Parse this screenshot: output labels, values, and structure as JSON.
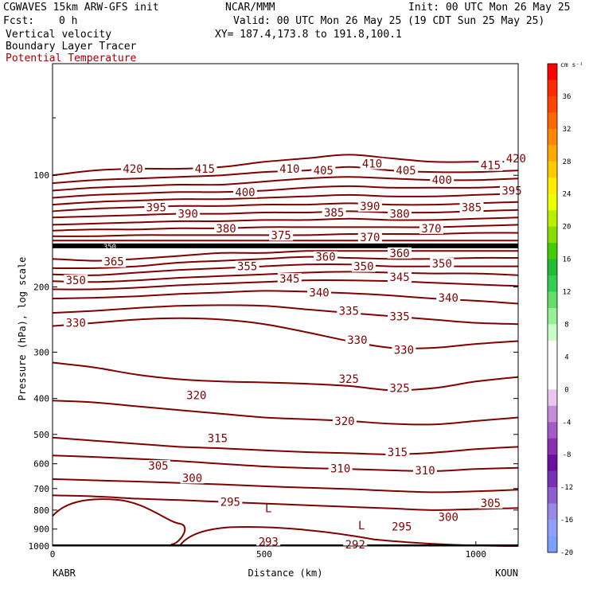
{
  "header": {
    "model": "CGWAVES 15km ARW-GFS init",
    "org": "NCAR/MMM",
    "init": "Init: 00 UTC Mon 26 May 25",
    "fcst_label": "Fcst:",
    "fcst_value": "0 h",
    "valid": "Valid: 00 UTC Mon 26 May 25 (19 CDT Sun 25 May 25)",
    "field1": "Vertical velocity",
    "xy": "XY= 187.4,173.8 to 191.8,100.1",
    "field2": "Boundary Layer Tracer",
    "field3": "Potential Temperature"
  },
  "colors": {
    "contour": "#800000",
    "field3_label": "#a00000",
    "frame": "#000000"
  },
  "chart_data": {
    "type": "line",
    "title": "",
    "xlabel": "Distance (km)",
    "ylabel": "Pressure (hPa), log scale",
    "x_ticks": [
      "0",
      "500",
      "1000"
    ],
    "x_tick_values": [
      0,
      500,
      1000
    ],
    "xlim": [
      0,
      1100
    ],
    "y_ticks": [
      "100",
      "200",
      "300",
      "400",
      "500",
      "600",
      "700",
      "800",
      "900",
      "1000"
    ],
    "y_tick_values": [
      100,
      200,
      300,
      400,
      500,
      600,
      700,
      800,
      900,
      1000
    ],
    "ylim": [
      1000,
      50
    ],
    "y_scale": "log",
    "x_left_station": "KABR",
    "x_right_station": "KOUN",
    "series_name": "Potential Temperature",
    "contour_interval": 5,
    "tropopause_label": "350",
    "tropopause_pressure": 155,
    "contour_x": [
      0,
      100,
      200,
      300,
      400,
      500,
      600,
      700,
      800,
      900,
      1000,
      1100
    ],
    "contours": [
      {
        "theta": 420,
        "p": [
          100,
          97,
          96,
          96,
          95,
          92,
          90,
          88,
          90,
          92,
          92,
          92
        ]
      },
      {
        "theta": 415,
        "p": [
          105,
          103,
          102,
          101,
          100,
          98,
          97,
          95,
          97,
          98,
          98,
          97
        ]
      },
      {
        "theta": 410,
        "p": [
          110,
          108,
          107,
          106,
          106,
          104,
          102,
          101,
          102,
          103,
          103,
          102
        ]
      },
      {
        "theta": 405,
        "p": [
          115,
          113,
          112,
          111,
          111,
          110,
          108,
          107,
          108,
          108,
          108,
          107
        ]
      },
      {
        "theta": 400,
        "p": [
          120,
          118,
          117,
          116,
          116,
          115,
          114,
          113,
          114,
          114,
          113,
          112
        ]
      },
      {
        "theta": 395,
        "p": [
          125,
          123,
          122,
          121,
          121,
          120,
          120,
          119,
          120,
          120,
          119,
          118
        ]
      },
      {
        "theta": 390,
        "p": [
          130,
          129,
          128,
          127,
          127,
          126,
          126,
          125,
          126,
          126,
          125,
          124
        ]
      },
      {
        "theta": 385,
        "p": [
          136,
          135,
          134,
          133,
          133,
          132,
          132,
          131,
          132,
          132,
          131,
          130
        ]
      },
      {
        "theta": 380,
        "p": [
          141,
          140,
          140,
          139,
          139,
          138,
          138,
          138,
          138,
          138,
          137,
          136
        ]
      },
      {
        "theta": 375,
        "p": [
          146,
          146,
          145,
          145,
          145,
          145,
          145,
          144,
          144,
          144,
          143,
          143
        ]
      },
      {
        "theta": 370,
        "p": [
          150,
          150,
          150,
          150,
          150,
          150,
          150,
          150,
          150,
          150,
          150,
          150
        ]
      },
      {
        "theta": 365,
        "p": [
          168,
          170,
          168,
          165,
          162,
          162,
          160,
          160,
          160,
          160,
          160,
          160
        ]
      },
      {
        "theta": 360,
        "p": [
          178,
          178,
          176,
          172,
          170,
          168,
          166,
          167,
          168,
          168,
          167,
          167
        ]
      },
      {
        "theta": 355,
        "p": [
          185,
          186,
          183,
          180,
          178,
          176,
          174,
          174,
          176,
          176,
          176,
          176
        ]
      },
      {
        "theta": 350,
        "p": [
          193,
          194,
          192,
          189,
          187,
          185,
          183,
          182,
          183,
          184,
          184,
          186
        ]
      },
      {
        "theta": 345,
        "p": [
          203,
          203,
          201,
          198,
          196,
          194,
          192,
          192,
          193,
          195,
          197,
          199
        ]
      },
      {
        "theta": 340,
        "p": [
          215,
          214,
          212,
          209,
          207,
          205,
          206,
          208,
          211,
          215,
          218,
          222
        ]
      },
      {
        "theta": 335,
        "p": [
          235,
          232,
          228,
          225,
          224,
          225,
          230,
          235,
          240,
          245,
          250,
          252
        ]
      },
      {
        "theta": 330,
        "p": [
          255,
          250,
          245,
          243,
          245,
          252,
          265,
          280,
          292,
          292,
          285,
          280
        ]
      },
      {
        "theta": 325,
        "p": [
          320,
          330,
          345,
          355,
          360,
          362,
          365,
          370,
          380,
          375,
          360,
          350
        ]
      },
      {
        "theta": 320,
        "p": [
          405,
          410,
          420,
          430,
          440,
          450,
          455,
          460,
          468,
          470,
          460,
          450
        ]
      },
      {
        "theta": 315,
        "p": [
          510,
          520,
          530,
          540,
          545,
          552,
          558,
          562,
          566,
          560,
          548,
          540
        ]
      },
      {
        "theta": 310,
        "p": [
          570,
          575,
          582,
          590,
          600,
          610,
          616,
          620,
          625,
          628,
          620,
          615
        ]
      },
      {
        "theta": 305,
        "p": [
          660,
          665,
          670,
          676,
          682,
          690,
          696,
          702,
          710,
          716,
          712,
          705
        ]
      },
      {
        "theta": 300,
        "p": [
          730,
          735,
          745,
          752,
          760,
          768,
          776,
          784,
          792,
          800,
          795,
          790
        ]
      }
    ],
    "contour_labels": [
      {
        "text": "420",
        "x": 190,
        "p": 96
      },
      {
        "text": "415",
        "x": 360,
        "p": 96
      },
      {
        "text": "410",
        "x": 560,
        "p": 96
      },
      {
        "text": "405",
        "x": 640,
        "p": 97
      },
      {
        "text": "410",
        "x": 755,
        "p": 93
      },
      {
        "text": "405",
        "x": 835,
        "p": 97
      },
      {
        "text": "400",
        "x": 920,
        "p": 103
      },
      {
        "text": "415",
        "x": 1035,
        "p": 94
      },
      {
        "text": "420",
        "x": 1095,
        "p": 90
      },
      {
        "text": "395",
        "x": 245,
        "p": 122
      },
      {
        "text": "390",
        "x": 320,
        "p": 127
      },
      {
        "text": "400",
        "x": 455,
        "p": 111
      },
      {
        "text": "385",
        "x": 665,
        "p": 126
      },
      {
        "text": "390",
        "x": 750,
        "p": 121
      },
      {
        "text": "380",
        "x": 820,
        "p": 127
      },
      {
        "text": "385",
        "x": 990,
        "p": 122
      },
      {
        "text": "395",
        "x": 1085,
        "p": 110
      },
      {
        "text": "380",
        "x": 410,
        "p": 139
      },
      {
        "text": "375",
        "x": 540,
        "p": 145
      },
      {
        "text": "370",
        "x": 750,
        "p": 147
      },
      {
        "text": "370",
        "x": 895,
        "p": 139
      },
      {
        "text": "365",
        "x": 145,
        "p": 171
      },
      {
        "text": "355",
        "x": 460,
        "p": 176
      },
      {
        "text": "360",
        "x": 645,
        "p": 166
      },
      {
        "text": "350",
        "x": 735,
        "p": 176
      },
      {
        "text": "360",
        "x": 820,
        "p": 162
      },
      {
        "text": "350",
        "x": 920,
        "p": 173
      },
      {
        "text": "350",
        "x": 55,
        "p": 192
      },
      {
        "text": "345",
        "x": 560,
        "p": 190
      },
      {
        "text": "345",
        "x": 820,
        "p": 188
      },
      {
        "text": "340",
        "x": 630,
        "p": 207
      },
      {
        "text": "340",
        "x": 935,
        "p": 214
      },
      {
        "text": "330",
        "x": 55,
        "p": 250
      },
      {
        "text": "335",
        "x": 700,
        "p": 232
      },
      {
        "text": "335",
        "x": 820,
        "p": 240
      },
      {
        "text": "330",
        "x": 720,
        "p": 278
      },
      {
        "text": "330",
        "x": 830,
        "p": 296
      },
      {
        "text": "325",
        "x": 700,
        "p": 354
      },
      {
        "text": "325",
        "x": 820,
        "p": 375
      },
      {
        "text": "320",
        "x": 340,
        "p": 392
      },
      {
        "text": "320",
        "x": 690,
        "p": 460
      },
      {
        "text": "315",
        "x": 390,
        "p": 512
      },
      {
        "text": "315",
        "x": 815,
        "p": 558
      },
      {
        "text": "310",
        "x": 680,
        "p": 618
      },
      {
        "text": "310",
        "x": 880,
        "p": 625
      },
      {
        "text": "305",
        "x": 250,
        "p": 607
      },
      {
        "text": "305",
        "x": 1035,
        "p": 765
      },
      {
        "text": "300",
        "x": 330,
        "p": 655
      },
      {
        "text": "300",
        "x": 935,
        "p": 835
      },
      {
        "text": "295",
        "x": 420,
        "p": 760
      },
      {
        "text": "295",
        "x": 825,
        "p": 885
      },
      {
        "text": "293",
        "x": 510,
        "p": 972
      },
      {
        "text": "292",
        "x": 715,
        "p": 990
      }
    ],
    "low_labels": [
      {
        "text": "L",
        "x": 510,
        "p": 790
      },
      {
        "text": "L",
        "x": 730,
        "p": 880
      }
    ],
    "colorbar": {
      "unit": "cm s⁻¹",
      "labels": [
        "36",
        "32",
        "28",
        "24",
        "20",
        "16",
        "12",
        "8",
        "4",
        "0",
        "-4",
        "-8",
        "-12",
        "-16",
        "-20"
      ],
      "colors": [
        "#ff0000",
        "#ff2a00",
        "#ff4400",
        "#ff6600",
        "#ff8800",
        "#ffaa00",
        "#ffcc00",
        "#ffee00",
        "#eeff00",
        "#bbee00",
        "#88dd00",
        "#44cc00",
        "#22bb33",
        "#33cc55",
        "#66dd66",
        "#99ee99",
        "#c8ffc8",
        "#ffffff",
        "#ffffff",
        "#ffffff",
        "#e8c6ee",
        "#c58cd9",
        "#a35cc6",
        "#8a2fb2",
        "#6a0fa0",
        "#7a2fb8",
        "#8c5fd0",
        "#9a88e6",
        "#8fa0ff",
        "#7aa0ff"
      ]
    }
  }
}
